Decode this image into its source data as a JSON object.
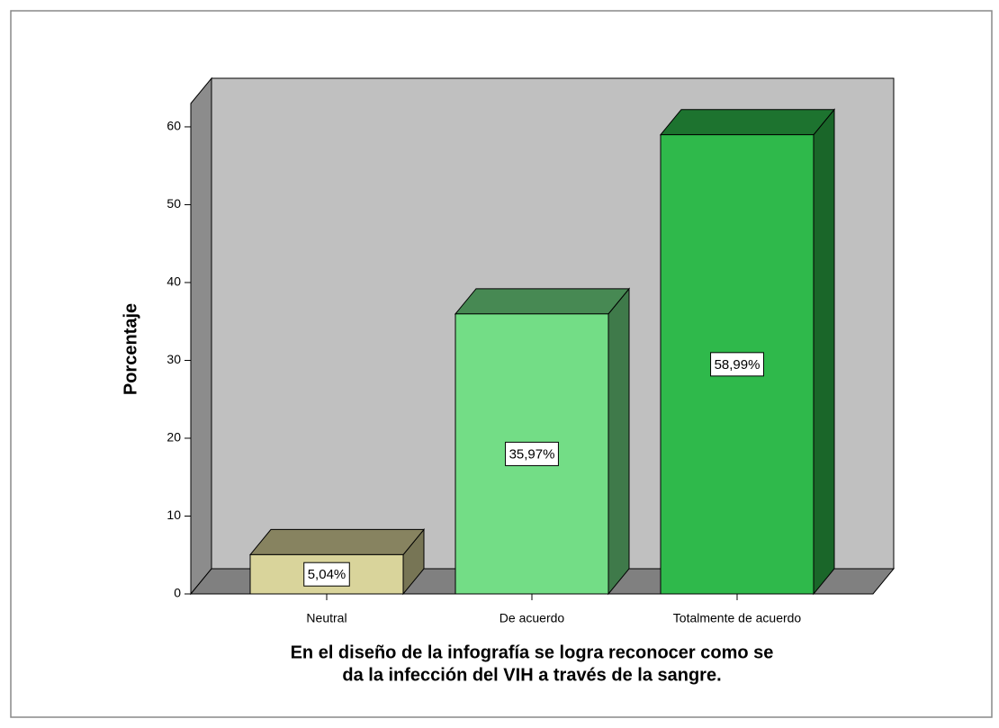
{
  "chart_data": {
    "type": "bar3d",
    "categories": [
      "Neutral",
      "De acuerdo",
      "Totalmente de acuerdo"
    ],
    "values": [
      5.04,
      35.97,
      58.99
    ],
    "value_labels": [
      "5,04%",
      "35,97%",
      "58,99%"
    ],
    "colors": [
      "#d9d49b",
      "#73dd86",
      "#2fb94b"
    ],
    "ylabel": "Porcentaje",
    "xlabel": [
      "En el diseño de la infografía se logra reconocer como se",
      "da la infección del VIH a través de la sangre."
    ],
    "ylim": [
      0,
      63
    ],
    "yticks": [
      0,
      10,
      20,
      30,
      40,
      50,
      60
    ]
  }
}
